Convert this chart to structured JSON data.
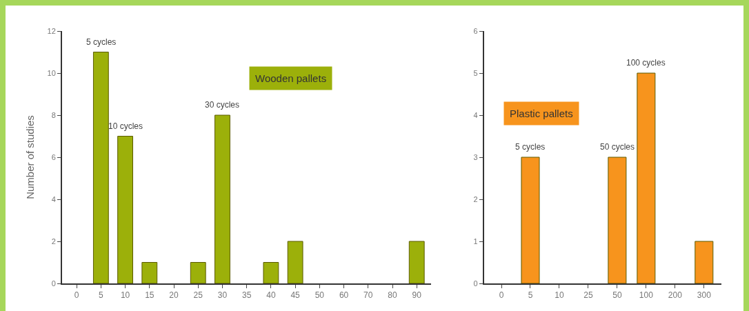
{
  "chart_data": [
    {
      "type": "bar",
      "ylabel": "Number of studies",
      "categories": [
        "0",
        "5",
        "10",
        "15",
        "20",
        "25",
        "30",
        "35",
        "40",
        "45",
        "50",
        "60",
        "70",
        "80",
        "90"
      ],
      "values": [
        0,
        11,
        7,
        1,
        0,
        1,
        8,
        0,
        1,
        2,
        0,
        0,
        0,
        0,
        2
      ],
      "color": "#9cb00a",
      "ylim": [
        0,
        12
      ],
      "yticks": [
        0,
        2,
        4,
        6,
        8,
        10,
        12
      ],
      "annotations": [
        "Wooden pallets",
        {
          "text": "5 cycles",
          "x": "5",
          "y": 11
        },
        {
          "text": "10 cycles",
          "x": "10",
          "y": 7
        },
        {
          "text": "30 cycles",
          "x": "30",
          "y": 8
        }
      ]
    },
    {
      "type": "bar",
      "categories": [
        "0",
        "5",
        "10",
        "25",
        "50",
        "100",
        "200",
        "300"
      ],
      "values": [
        0,
        3,
        0,
        0,
        3,
        5,
        0,
        1
      ],
      "color": "#f7941d",
      "ylim": [
        0,
        6
      ],
      "yticks": [
        0,
        1,
        2,
        3,
        4,
        5,
        6
      ],
      "annotations": [
        "Plastic pallets",
        {
          "text": "5 cycles",
          "x": "5",
          "y": 3
        },
        {
          "text": "50 cycles",
          "x": "50",
          "y": 3
        },
        {
          "text": "100 cycles",
          "x": "100",
          "y": 5
        }
      ]
    }
  ]
}
